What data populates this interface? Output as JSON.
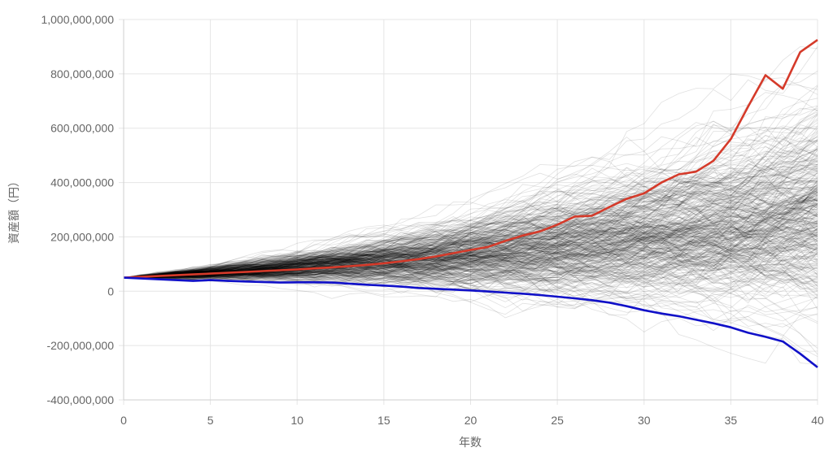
{
  "chart_data": {
    "type": "line",
    "title": "",
    "xlabel": "年数",
    "ylabel": "資産額（円）",
    "xlim": [
      0,
      40
    ],
    "ylim": [
      -400000000,
      1000000000
    ],
    "x_ticks": [
      0,
      5,
      10,
      15,
      20,
      25,
      30,
      35,
      40
    ],
    "x_tick_labels": [
      "0",
      "5",
      "10",
      "15",
      "20",
      "25",
      "30",
      "35",
      "40"
    ],
    "y_ticks": [
      -400000000,
      -200000000,
      0,
      200000000,
      400000000,
      600000000,
      800000000,
      1000000000
    ],
    "y_tick_labels": [
      "-400,000,000",
      "-200,000,000",
      "0",
      "200,000,000",
      "400,000,000",
      "600,000,000",
      "800,000,000",
      "1,000,000,000"
    ],
    "grid": true,
    "legend": "none",
    "colors": {
      "max_series": "#d53a2a",
      "min_series": "#1010c8",
      "simulations": "#000000",
      "grid": "#e5e5e5"
    },
    "series": [
      {
        "role": "max",
        "x": [
          0,
          1,
          2,
          3,
          4,
          5,
          6,
          7,
          8,
          9,
          10,
          11,
          12,
          13,
          14,
          15,
          16,
          17,
          18,
          19,
          20,
          21,
          22,
          23,
          24,
          25,
          26,
          27,
          28,
          29,
          30,
          31,
          32,
          33,
          34,
          35,
          36,
          37,
          38,
          39,
          40
        ],
        "values": [
          50000000,
          53000000,
          56000000,
          59000000,
          62000000,
          65000000,
          68000000,
          71000000,
          74000000,
          77000000,
          80000000,
          84000000,
          88000000,
          92000000,
          97000000,
          103000000,
          110000000,
          118000000,
          128000000,
          140000000,
          152000000,
          163000000,
          185000000,
          205000000,
          220000000,
          245000000,
          275000000,
          278000000,
          310000000,
          340000000,
          360000000,
          400000000,
          430000000,
          440000000,
          480000000,
          560000000,
          680000000,
          795000000,
          745000000,
          880000000,
          925000000
        ]
      },
      {
        "role": "min",
        "x": [
          0,
          1,
          2,
          3,
          4,
          5,
          6,
          7,
          8,
          9,
          10,
          11,
          12,
          13,
          14,
          15,
          16,
          17,
          18,
          19,
          20,
          21,
          22,
          23,
          24,
          25,
          26,
          27,
          28,
          29,
          30,
          31,
          32,
          33,
          34,
          35,
          36,
          37,
          38,
          39,
          40
        ],
        "values": [
          50000000,
          47000000,
          44000000,
          41000000,
          38000000,
          41000000,
          38000000,
          36000000,
          34000000,
          32000000,
          33000000,
          33000000,
          32000000,
          28000000,
          24000000,
          21000000,
          17000000,
          12000000,
          9000000,
          6000000,
          3000000,
          -1000000,
          -5000000,
          -9000000,
          -14000000,
          -20000000,
          -26000000,
          -33000000,
          -42000000,
          -55000000,
          -70000000,
          -82000000,
          -92000000,
          -105000000,
          -118000000,
          -133000000,
          -153000000,
          -168000000,
          -185000000,
          -230000000,
          -280000000
        ]
      }
    ],
    "simulation_band": {
      "count": 400,
      "start": 50000000,
      "mean_end": 140000000,
      "p5_end": -150000000,
      "p95_end": 600000000
    }
  }
}
